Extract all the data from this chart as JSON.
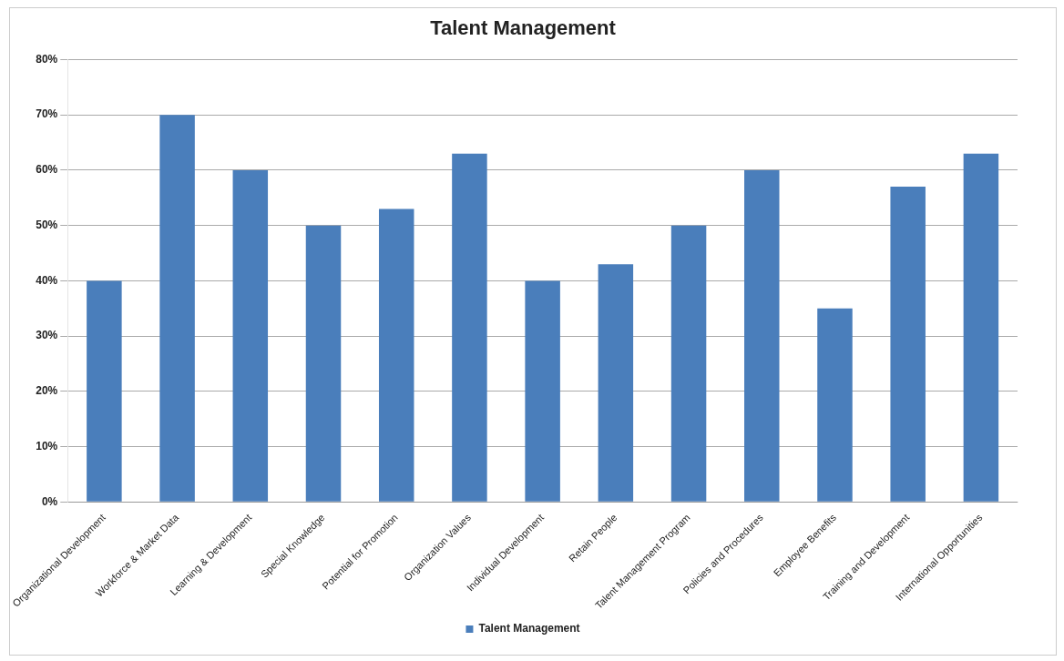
{
  "chart_data": {
    "type": "bar",
    "title": "Talent Management",
    "categories": [
      "Organizational Development",
      "Workforce & Market Data",
      "Learning & Development",
      "Special Knowledge",
      "Potential for Promotion",
      "Organization Values",
      "Individual Development",
      "Retain People",
      "Talent Management Program",
      "Policies and Procedures",
      "Employee Benefits",
      "Training and Development",
      "International Opportunities"
    ],
    "series": [
      {
        "name": "Talent Management",
        "color": "#4a7ebb",
        "values": [
          40,
          70,
          60,
          50,
          53,
          63,
          40,
          43,
          50,
          60,
          35,
          57,
          63
        ]
      }
    ],
    "ylim": [
      0,
      80
    ],
    "yticks": [
      {
        "value": 0,
        "label": "0%"
      },
      {
        "value": 10,
        "label": "10%"
      },
      {
        "value": 20,
        "label": "20%"
      },
      {
        "value": 30,
        "label": "30%"
      },
      {
        "value": 40,
        "label": "40%"
      },
      {
        "value": 50,
        "label": "50%"
      },
      {
        "value": 60,
        "label": "60%"
      },
      {
        "value": 70,
        "label": "70%"
      },
      {
        "value": 80,
        "label": "80%"
      }
    ],
    "grid": "y",
    "legend": "bottom"
  }
}
